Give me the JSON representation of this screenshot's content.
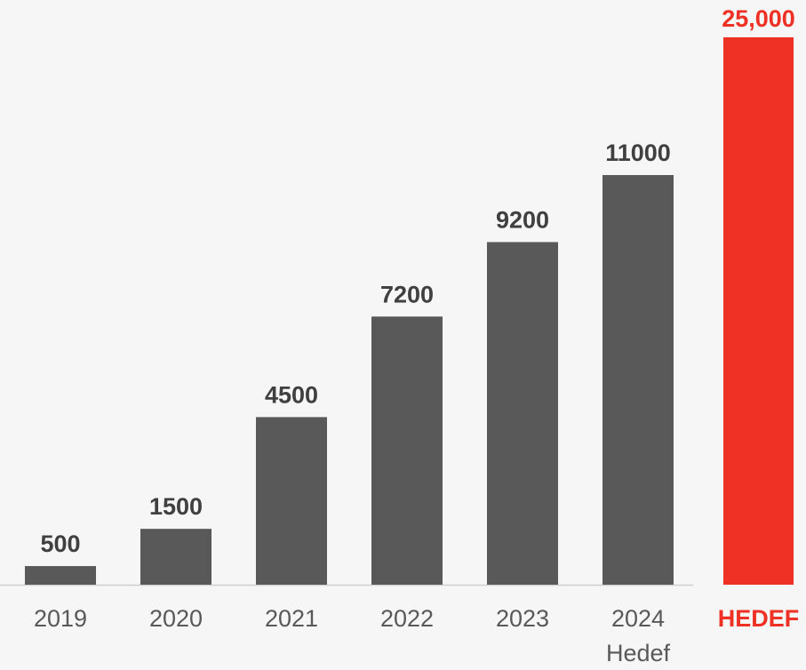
{
  "chart_data": {
    "type": "bar",
    "categories": [
      "2019",
      "2020",
      "2021",
      "2022",
      "2023",
      "2024"
    ],
    "category_sublabels": [
      "",
      "",
      "",
      "",
      "",
      "Hedef"
    ],
    "values": [
      500,
      1500,
      4500,
      7200,
      9200,
      11000
    ],
    "value_labels": [
      "500",
      "1500",
      "4500",
      "7200",
      "9200",
      "11000"
    ],
    "bar_color": "#595959",
    "label_color": "#404040",
    "tick_color": "#595959",
    "axis_color": "#d0d0d0",
    "target": {
      "category": "HEDEF",
      "value": 25000,
      "value_label": "25,000",
      "color": "#ee3124"
    },
    "title": "",
    "xlabel": "",
    "ylabel": "",
    "ylim": [
      0,
      25000
    ],
    "grid": false,
    "legend": "none"
  }
}
